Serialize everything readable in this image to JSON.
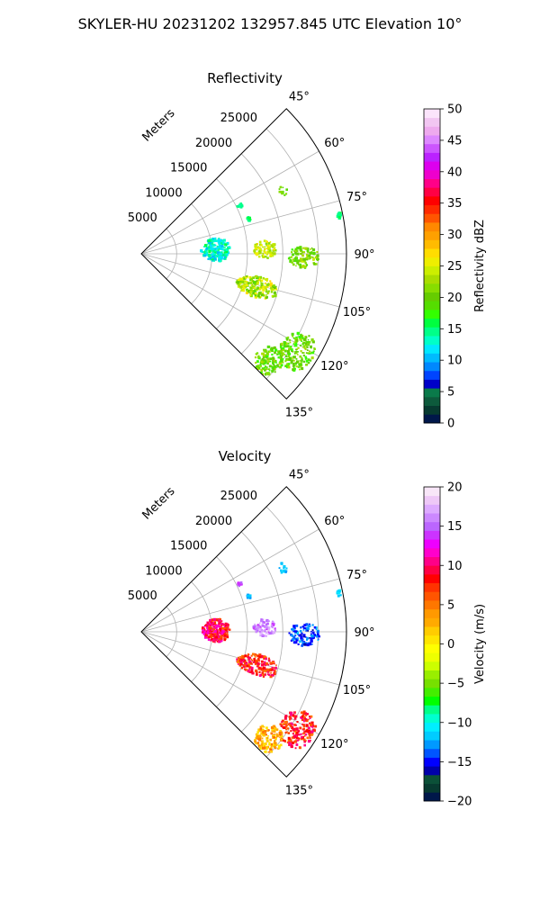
{
  "figure": {
    "title": "SKYLER-HU  20231202  132957.845 UTC Elevation 10°"
  },
  "chart_data": [
    {
      "type": "polar-sector",
      "title": "Reflectivity",
      "radial_label": "Meters",
      "radial_ticks": [
        "5000",
        "10000",
        "15000",
        "20000",
        "25000"
      ],
      "angle_ticks": [
        "45°",
        "60°",
        "75°",
        "90°",
        "105°",
        "120°",
        "135°"
      ],
      "theta_range_deg": [
        45,
        135
      ],
      "r_range_m": [
        0,
        29000
      ],
      "colorbar": {
        "label": "Reflectivity dBZ",
        "range": [
          0,
          50
        ],
        "ticks": [
          "0",
          "5",
          "10",
          "15",
          "20",
          "25",
          "30",
          "35",
          "40",
          "45",
          "50"
        ]
      },
      "echoes": [
        {
          "az": 87,
          "r": 10500,
          "dr": 2000,
          "da": 9,
          "value": 13,
          "spread": 3
        },
        {
          "az": 88,
          "r": 17500,
          "dr": 1600,
          "da": 4,
          "value": 24,
          "spread": 3
        },
        {
          "az": 91,
          "r": 23000,
          "dr": 2200,
          "da": 4,
          "value": 21,
          "spread": 3
        },
        {
          "az": 106,
          "r": 17000,
          "dr": 3000,
          "da": 5,
          "value": 23,
          "spread": 4
        },
        {
          "az": 122,
          "r": 26000,
          "dr": 2500,
          "da": 6,
          "value": 20,
          "spread": 3
        },
        {
          "az": 130,
          "r": 23500,
          "dr": 2000,
          "da": 5,
          "value": 20,
          "spread": 3
        },
        {
          "az": 66,
          "r": 22000,
          "dr": 600,
          "da": 2,
          "value": 20,
          "spread": 2
        },
        {
          "az": 64,
          "r": 15500,
          "dr": 400,
          "da": 1,
          "value": 14,
          "spread": 1
        },
        {
          "az": 72,
          "r": 16000,
          "dr": 300,
          "da": 1,
          "value": 15,
          "spread": 1
        },
        {
          "az": 79,
          "r": 28500,
          "dr": 300,
          "da": 1,
          "value": 15,
          "spread": 1
        }
      ]
    },
    {
      "type": "polar-sector",
      "title": "Velocity",
      "radial_label": "Meters",
      "radial_ticks": [
        "5000",
        "10000",
        "15000",
        "20000",
        "25000"
      ],
      "angle_ticks": [
        "45°",
        "60°",
        "75°",
        "90°",
        "105°",
        "120°",
        "135°"
      ],
      "theta_range_deg": [
        45,
        135
      ],
      "r_range_m": [
        0,
        29000
      ],
      "colorbar": {
        "label": "Velocity (m/s)",
        "range": [
          -20,
          20
        ],
        "ticks": [
          "−20",
          "−15",
          "−10",
          "−5",
          "0",
          "5",
          "10",
          "15",
          "20"
        ]
      },
      "echoes": [
        {
          "az": 89,
          "r": 10500,
          "dr": 2000,
          "da": 9,
          "value": 9,
          "spread": 3
        },
        {
          "az": 88,
          "r": 17500,
          "dr": 1600,
          "da": 4,
          "value": 16,
          "spread": 2
        },
        {
          "az": 91,
          "r": 23000,
          "dr": 2200,
          "da": 4,
          "value": -14,
          "spread": 2
        },
        {
          "az": 106,
          "r": 17000,
          "dr": 3000,
          "da": 5,
          "value": 8,
          "spread": 3
        },
        {
          "az": 122,
          "r": 26000,
          "dr": 2500,
          "da": 6,
          "value": 8,
          "spread": 3
        },
        {
          "az": 130,
          "r": 23500,
          "dr": 2000,
          "da": 5,
          "value": 3,
          "spread": 3
        },
        {
          "az": 66,
          "r": 22000,
          "dr": 600,
          "da": 2,
          "value": -12,
          "spread": 1
        },
        {
          "az": 64,
          "r": 15500,
          "dr": 400,
          "da": 1,
          "value": 14,
          "spread": 1
        },
        {
          "az": 72,
          "r": 16000,
          "dr": 300,
          "da": 1,
          "value": -12,
          "spread": 1
        },
        {
          "az": 79,
          "r": 28500,
          "dr": 300,
          "da": 1,
          "value": -11,
          "spread": 1
        }
      ]
    }
  ]
}
